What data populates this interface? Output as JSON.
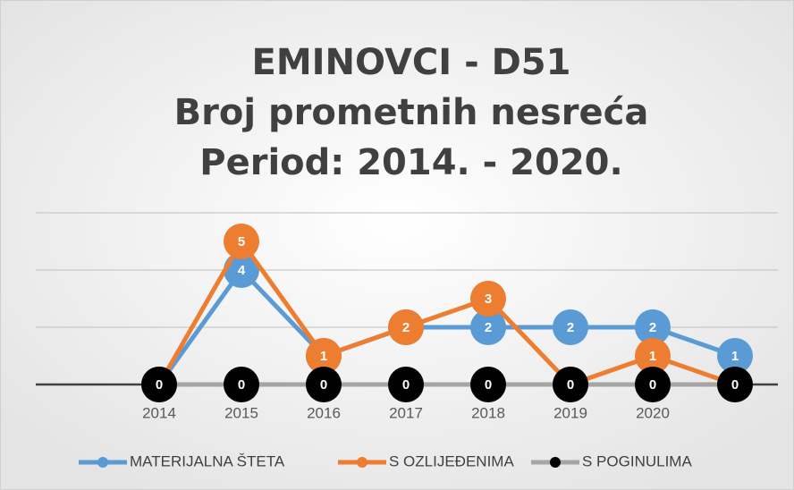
{
  "chart_data": {
    "type": "line",
    "title": [
      "EMINOVCI - D51",
      "Broj prometnih nesreća",
      "Period: 2014. - 2020."
    ],
    "categories": [
      "2014",
      "2015",
      "2016",
      "2017",
      "2018",
      "2019",
      "2020",
      null
    ],
    "series": [
      {
        "name": "MATERIJALNA ŠTETA",
        "color": "#5b9bd5",
        "values": [
          0,
          4,
          1,
          2,
          2,
          2,
          2,
          1
        ]
      },
      {
        "name": "S OZLIJEĐENIMA",
        "color": "#ed7d31",
        "values": [
          0,
          5,
          1,
          2,
          3,
          0,
          1,
          0
        ]
      },
      {
        "name": "S POGINULIMA",
        "color": "#a5a5a5",
        "marker_color": "#000000",
        "values": [
          0,
          0,
          0,
          0,
          0,
          0,
          0,
          0
        ]
      }
    ],
    "ylim": [
      0,
      6
    ],
    "yticks": [
      0,
      2,
      4,
      6
    ],
    "grid": true,
    "legend": "bottom"
  }
}
